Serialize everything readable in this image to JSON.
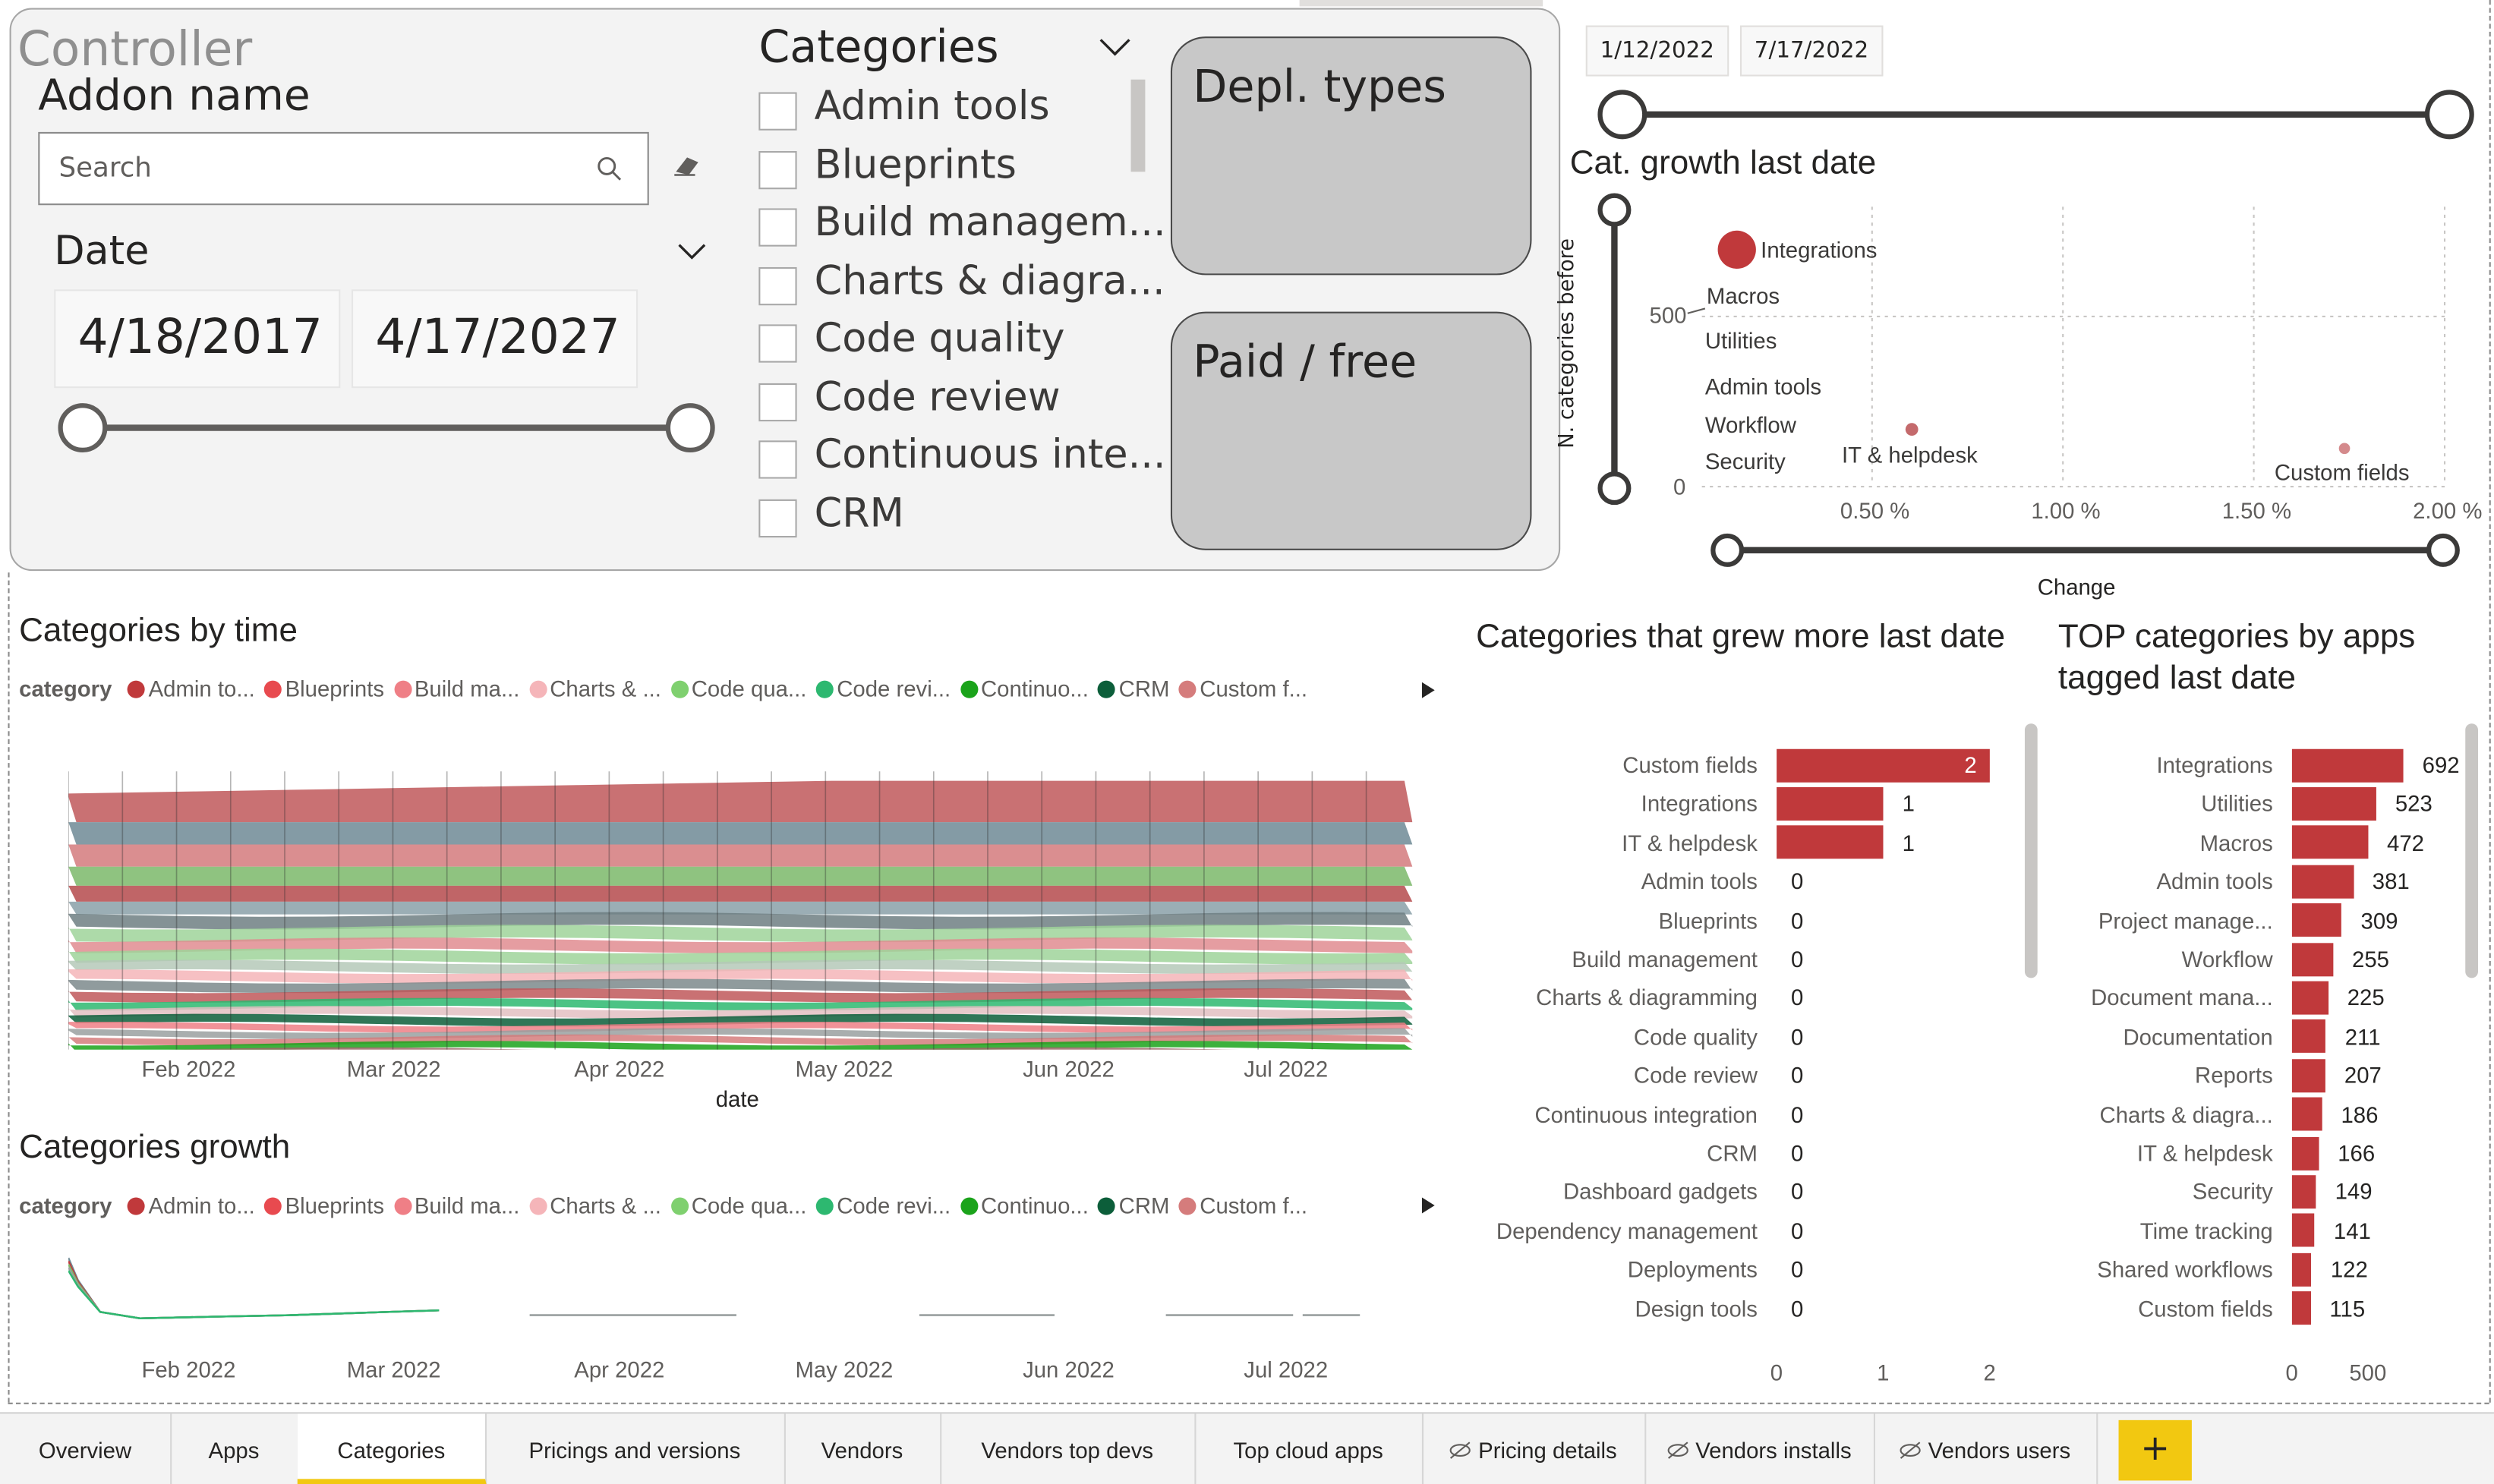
{
  "controller": {
    "title": "Controller",
    "addon_label": "Addon name",
    "search_placeholder": "Search",
    "date_label": "Date",
    "date_from": "4/18/2017",
    "date_to": "4/17/2027"
  },
  "categories_slicer": {
    "title": "Categories",
    "items": [
      "Admin tools",
      "Blueprints",
      "Build managem...",
      "Charts & diagra...",
      "Code quality",
      "Code review",
      "Continuous inte...",
      "CRM"
    ]
  },
  "buttons": {
    "depl_types": "Depl. types",
    "paid_free": "Paid / free"
  },
  "top_dates": {
    "from": "1/12/2022",
    "to": "7/17/2022"
  },
  "growth_scatter": {
    "title": "Cat. growth last date",
    "y_axis_label": "N. categories before",
    "x_axis_label": "Change",
    "y_ticks": [
      "500",
      "0"
    ],
    "x_ticks": [
      "0.50 %",
      "1.00 %",
      "1.50 %",
      "2.00 %"
    ],
    "point_labels": [
      "Integrations",
      "Macros",
      "Utilities",
      "Admin tools",
      "Workflow",
      "Security",
      "IT & helpdesk",
      "Custom fields"
    ]
  },
  "stream_chart": {
    "title": "Categories by time",
    "legend_title": "category",
    "legend": [
      {
        "name": "Admin to...",
        "color": "#c0393b"
      },
      {
        "name": "Blueprints",
        "color": "#e84a4f"
      },
      {
        "name": "Build ma...",
        "color": "#ef7f86"
      },
      {
        "name": "Charts & ...",
        "color": "#f5b5b9"
      },
      {
        "name": "Code qua...",
        "color": "#7fd06f"
      },
      {
        "name": "Code revi...",
        "color": "#2db870"
      },
      {
        "name": "Continuo...",
        "color": "#1ba31b"
      },
      {
        "name": "CRM",
        "color": "#0c5e3a"
      },
      {
        "name": "Custom f...",
        "color": "#d57c7c"
      }
    ],
    "x_ticks": [
      "Feb 2022",
      "Mar 2022",
      "Apr 2022",
      "May 2022",
      "Jun 2022",
      "Jul 2022"
    ],
    "x_label": "date"
  },
  "growth_chart": {
    "title": "Categories growth",
    "legend_title": "category",
    "x_ticks": [
      "Feb 2022",
      "Mar 2022",
      "Apr 2022",
      "May 2022",
      "Jun 2022",
      "Jul 2022"
    ]
  },
  "chart_data": [
    {
      "type": "bar",
      "title": "Categories that grew more last date",
      "orientation": "horizontal",
      "categories": [
        "Custom fields",
        "Integrations",
        "IT & helpdesk",
        "Admin tools",
        "Blueprints",
        "Build management",
        "Charts & diagramming",
        "Code quality",
        "Code review",
        "Continuous integration",
        "CRM",
        "Dashboard gadgets",
        "Dependency management",
        "Deployments",
        "Design tools"
      ],
      "values": [
        2,
        1,
        1,
        0,
        0,
        0,
        0,
        0,
        0,
        0,
        0,
        0,
        0,
        0,
        0
      ],
      "x_ticks": [
        "0",
        "1",
        "2"
      ],
      "xlim": [
        0,
        2
      ],
      "color": "#c0393b"
    },
    {
      "type": "bar",
      "title": "TOP categories by apps tagged last date",
      "orientation": "horizontal",
      "categories": [
        "Integrations",
        "Utilities",
        "Macros",
        "Admin tools",
        "Project manage...",
        "Workflow",
        "Document mana...",
        "Documentation",
        "Reports",
        "Charts & diagra...",
        "IT & helpdesk",
        "Security",
        "Time tracking",
        "Shared workflows",
        "Custom fields"
      ],
      "values": [
        692,
        523,
        472,
        381,
        309,
        255,
        225,
        211,
        207,
        186,
        166,
        149,
        141,
        122,
        115
      ],
      "x_ticks": [
        "0",
        "500"
      ],
      "xlim": [
        0,
        1000
      ],
      "color": "#c0393b"
    }
  ],
  "tabs": [
    "Overview",
    "Apps",
    "Categories",
    "Pricings and versions",
    "Vendors",
    "Vendors top devs",
    "Top cloud apps",
    "Pricing details",
    "Vendors installs",
    "Vendors users"
  ],
  "add_tab_label": "+"
}
